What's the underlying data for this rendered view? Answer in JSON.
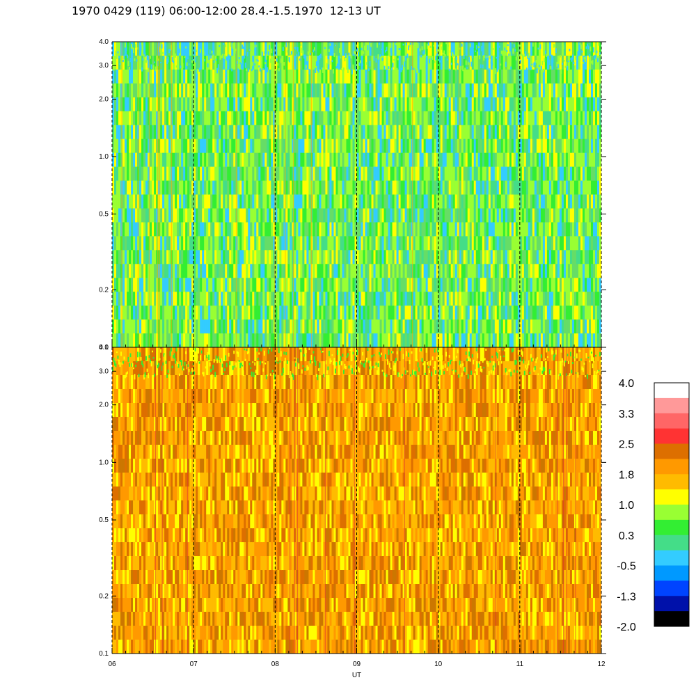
{
  "title": "1970 0429 (119) 06:00-12:00 28.4.-1.5.1970  12-13 UT",
  "chart_data": [
    {
      "type": "heatmap",
      "panel": "upper",
      "y_scale": "log",
      "ylim": [
        0.1,
        4.0
      ],
      "yticks": [
        "0.1",
        "0.2",
        "0.5",
        "1.0",
        "2.0",
        "3.0",
        "4.0"
      ],
      "xlim": [
        "06",
        "12"
      ],
      "xticks": [
        "06",
        "07",
        "08",
        "09",
        "10",
        "11",
        "12"
      ],
      "dominant_levels": [
        "0.3",
        "1.0"
      ],
      "grid": "dashed vertical lines at each hour"
    },
    {
      "type": "heatmap",
      "panel": "lower",
      "y_scale": "log",
      "ylim": [
        0.1,
        4.0
      ],
      "yticks": [
        "0.1",
        "0.2",
        "0.5",
        "1.0",
        "2.0",
        "3.0",
        "4.0"
      ],
      "xlim": [
        "06",
        "12"
      ],
      "xticks": [
        "06",
        "07",
        "08",
        "09",
        "10",
        "11",
        "12"
      ],
      "xlabel": "UT",
      "dominant_levels": [
        "1.8",
        "2.5"
      ],
      "grid": "dashed vertical lines at each hour"
    }
  ],
  "colorbar": {
    "labels": [
      "4.0",
      "3.3",
      "2.5",
      "1.8",
      "1.0",
      "0.3",
      "-0.5",
      "-1.3",
      "-2.0"
    ],
    "colors": [
      "#ffffff",
      "#ff9999",
      "#ff6666",
      "#ff3333",
      "#dd6f00",
      "#ff9900",
      "#ffbb00",
      "#ffff00",
      "#99ff33",
      "#33ee33",
      "#44dd88",
      "#33ccff",
      "#0099ff",
      "#0044ff",
      "#0011aa",
      "#000000"
    ]
  }
}
